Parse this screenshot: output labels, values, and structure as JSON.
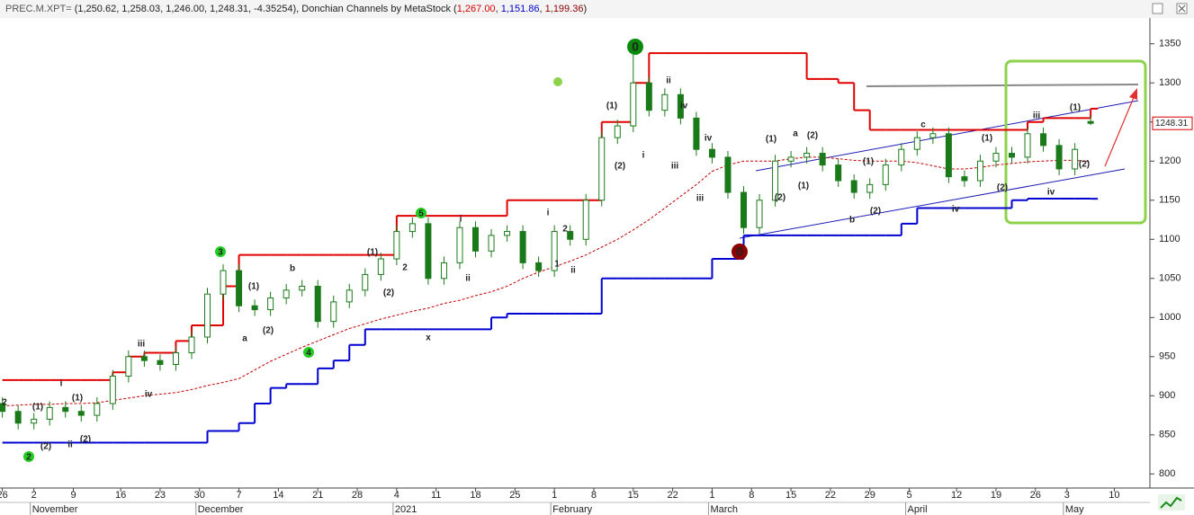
{
  "header": {
    "parts": [
      {
        "text": "PREC.M.XPT=",
        "color": "#555555"
      },
      {
        "text": " (1,250.62, 1,258.03, 1,246.00, 1,248.31, -4.35254), Donchian Channels by MetaStock (",
        "color": "#222222"
      },
      {
        "text": "1,267.00",
        "color": "#d40000"
      },
      {
        "text": ", ",
        "color": "#222222"
      },
      {
        "text": "1,151.86",
        "color": "#0000c8"
      },
      {
        "text": ", ",
        "color": "#222222"
      },
      {
        "text": "1,199.36",
        "color": "#8b0000"
      },
      {
        "text": ")",
        "color": "#222222"
      }
    ]
  },
  "chart_data": {
    "type": "candlestick",
    "xlim": [
      -0.3,
      145.4
    ],
    "ylim": [
      782,
      1383
    ],
    "yticks": [
      800,
      850,
      900,
      950,
      1000,
      1050,
      1100,
      1150,
      1200,
      1250,
      1300,
      1350
    ],
    "xticks": [
      {
        "value": 0,
        "label": "26"
      },
      {
        "value": 4,
        "label": "2"
      },
      {
        "value": 9,
        "label": "9"
      },
      {
        "value": 15,
        "label": "16"
      },
      {
        "value": 20,
        "label": "23"
      },
      {
        "value": 25,
        "label": "30"
      },
      {
        "value": 30,
        "label": "7"
      },
      {
        "value": 35,
        "label": "14"
      },
      {
        "value": 40,
        "label": "21"
      },
      {
        "value": 45,
        "label": "28"
      },
      {
        "value": 50,
        "label": "4"
      },
      {
        "value": 55,
        "label": "11"
      },
      {
        "value": 60,
        "label": "18"
      },
      {
        "value": 65,
        "label": "25"
      },
      {
        "value": 70,
        "label": "1"
      },
      {
        "value": 75,
        "label": "8"
      },
      {
        "value": 80,
        "label": "15"
      },
      {
        "value": 85,
        "label": "22"
      },
      {
        "value": 90,
        "label": "1"
      },
      {
        "value": 95,
        "label": "8"
      },
      {
        "value": 100,
        "label": "15"
      },
      {
        "value": 105,
        "label": "22"
      },
      {
        "value": 110,
        "label": "29"
      },
      {
        "value": 115,
        "label": "5"
      },
      {
        "value": 121,
        "label": "12"
      },
      {
        "value": 126,
        "label": "19"
      },
      {
        "value": 131,
        "label": "26"
      },
      {
        "value": 135,
        "label": "3"
      },
      {
        "value": 141,
        "label": "10"
      }
    ],
    "month_ticks": [
      {
        "value": 4,
        "label": "November"
      },
      {
        "value": 25,
        "label": "December"
      },
      {
        "value": 50,
        "label": "2021"
      },
      {
        "value": 70,
        "label": "February"
      },
      {
        "value": 90,
        "label": "March"
      },
      {
        "value": 115,
        "label": "April"
      },
      {
        "value": 135,
        "label": "May"
      }
    ],
    "last_label": "1248.31",
    "last_value": 1248.31,
    "up_color": "#ffffff",
    "down_color": "#1a7a1a",
    "wick_color": "#1a7a1a",
    "x": [
      0,
      2,
      4,
      6,
      8,
      10,
      12,
      14,
      16,
      18,
      20,
      22,
      24,
      26,
      28,
      30,
      32,
      34,
      36,
      38,
      40,
      42,
      44,
      46,
      48,
      50,
      52,
      54,
      56,
      58,
      60,
      62,
      64,
      66,
      68,
      70,
      72,
      74,
      76,
      78,
      80,
      82,
      84,
      86,
      88,
      90,
      92,
      94,
      96,
      98,
      100,
      102,
      104,
      106,
      108,
      110,
      112,
      114,
      116,
      118,
      120,
      122,
      124,
      126,
      128,
      130,
      132,
      134,
      136,
      138
    ],
    "open": [
      890,
      880,
      865,
      870,
      885,
      880,
      875,
      890,
      925,
      950,
      945,
      940,
      955,
      975,
      1030,
      1060,
      1015,
      1010,
      1025,
      1035,
      1040,
      995,
      1020,
      1035,
      1055,
      1075,
      1110,
      1120,
      1050,
      1070,
      1115,
      1085,
      1105,
      1110,
      1070,
      1060,
      1110,
      1100,
      1150,
      1230,
      1245,
      1300,
      1265,
      1285,
      1255,
      1215,
      1205,
      1160,
      1115,
      1150,
      1200,
      1205,
      1210,
      1195,
      1175,
      1160,
      1170,
      1195,
      1215,
      1230,
      1235,
      1180,
      1175,
      1200,
      1210,
      1205,
      1235,
      1220,
      1190,
      1250.62
    ],
    "high": [
      898,
      888,
      878,
      893,
      893,
      888,
      898,
      933,
      958,
      958,
      953,
      963,
      983,
      1038,
      1068,
      1068,
      1023,
      1033,
      1043,
      1048,
      1048,
      1028,
      1043,
      1063,
      1083,
      1118,
      1128,
      1128,
      1078,
      1123,
      1123,
      1113,
      1118,
      1118,
      1078,
      1118,
      1118,
      1158,
      1238,
      1253,
      1336,
      1308,
      1293,
      1293,
      1263,
      1223,
      1213,
      1168,
      1158,
      1208,
      1213,
      1218,
      1218,
      1203,
      1183,
      1178,
      1203,
      1223,
      1238,
      1243,
      1243,
      1188,
      1208,
      1218,
      1218,
      1243,
      1243,
      1228,
      1223,
      1258.03
    ],
    "low": [
      872,
      857,
      857,
      862,
      872,
      867,
      867,
      882,
      917,
      937,
      932,
      932,
      947,
      967,
      1022,
      1007,
      1002,
      1002,
      1017,
      1027,
      987,
      987,
      1012,
      1027,
      1047,
      1067,
      1102,
      1042,
      1042,
      1062,
      1077,
      1077,
      1097,
      1062,
      1052,
      1052,
      1092,
      1092,
      1142,
      1222,
      1237,
      1257,
      1257,
      1247,
      1207,
      1197,
      1152,
      1107,
      1107,
      1142,
      1192,
      1197,
      1187,
      1167,
      1152,
      1152,
      1162,
      1187,
      1207,
      1222,
      1172,
      1167,
      1167,
      1192,
      1197,
      1197,
      1212,
      1182,
      1182,
      1246
    ],
    "close": [
      880,
      865,
      870,
      885,
      880,
      875,
      890,
      925,
      950,
      945,
      940,
      955,
      975,
      1030,
      1060,
      1015,
      1010,
      1025,
      1035,
      1040,
      995,
      1020,
      1035,
      1055,
      1075,
      1110,
      1120,
      1050,
      1070,
      1115,
      1085,
      1105,
      1110,
      1070,
      1060,
      1110,
      1100,
      1150,
      1230,
      1245,
      1300,
      1265,
      1285,
      1255,
      1215,
      1205,
      1160,
      1115,
      1150,
      1200,
      1205,
      1210,
      1195,
      1175,
      1160,
      1170,
      1195,
      1215,
      1230,
      1235,
      1180,
      1175,
      1200,
      1210,
      1205,
      1235,
      1220,
      1190,
      1215,
      1248.31
    ],
    "channels": [
      {
        "color": "#e00000",
        "style": "step",
        "values": [
          920,
          920,
          920,
          920,
          920,
          920,
          920,
          930,
          950,
          955,
          955,
          970,
          990,
          990,
          1040,
          1080,
          1080,
          1080,
          1080,
          1080,
          1080,
          1080,
          1080,
          1080,
          1080,
          1130,
          1130,
          1130,
          1130,
          1130,
          1130,
          1130,
          1150,
          1150,
          1150,
          1150,
          1150,
          1150,
          1250,
          1250,
          1300,
          1338,
          1338,
          1338,
          1338,
          1338,
          1338,
          1338,
          1338,
          1338,
          1338,
          1305,
          1305,
          1300,
          1265,
          1240,
          1240,
          1240,
          1240,
          1240,
          1240,
          1240,
          1240,
          1240,
          1240,
          1250,
          1255,
          1255,
          1255,
          1267
        ]
      },
      {
        "color": "#0000d0",
        "style": "step",
        "values": [
          840,
          840,
          840,
          840,
          840,
          840,
          840,
          840,
          840,
          840,
          840,
          840,
          840,
          855,
          855,
          865,
          890,
          910,
          915,
          915,
          935,
          945,
          965,
          985,
          985,
          985,
          985,
          985,
          985,
          985,
          985,
          1000,
          1005,
          1005,
          1005,
          1005,
          1005,
          1005,
          1050,
          1050,
          1050,
          1050,
          1050,
          1050,
          1050,
          1075,
          1075,
          1105,
          1105,
          1105,
          1105,
          1105,
          1105,
          1105,
          1105,
          1105,
          1105,
          1120,
          1140,
          1140,
          1140,
          1140,
          1140,
          1140,
          1150,
          1152,
          1152,
          1152,
          1152,
          1151.86
        ]
      },
      {
        "color": "#c00000",
        "style": "dashed",
        "values": [
          887,
          888,
          889,
          889,
          890,
          890,
          891,
          894,
          897,
          900,
          902,
          904,
          908,
          913,
          917,
          922,
          933,
          944,
          953,
          962,
          970,
          978,
          986,
          992,
          998,
          1003,
          1008,
          1012,
          1018,
          1022,
          1028,
          1033,
          1040,
          1050,
          1058,
          1065,
          1072,
          1080,
          1090,
          1100,
          1112,
          1125,
          1140,
          1155,
          1170,
          1187,
          1195,
          1200,
          1200,
          1200,
          1203,
          1205,
          1205,
          1203,
          1201,
          1200,
          1200,
          1200,
          1198,
          1194,
          1190,
          1190,
          1192,
          1195,
          1197,
          1199,
          1200,
          1201,
          1201,
          1199.36
        ]
      }
    ],
    "annotations": [
      {
        "text": "0",
        "color": "#0a8a0a",
        "circled": true
      },
      {
        "text": "0",
        "color": "#8b0000",
        "circled": true
      },
      {
        "text": "3",
        "color": "#22cc22",
        "circled": true
      },
      {
        "text": "4",
        "color": "#22cc22",
        "circled": true
      },
      {
        "text": "5",
        "color": "#22cc22",
        "circled": true
      },
      {
        "text": "2",
        "color": "#22cc22",
        "circled": true
      },
      {
        "text": "(1)",
        "color": "#1f8a1f"
      },
      {
        "text": "i",
        "color": "#1f8a1f"
      },
      {
        "text": "(1)",
        "color": "#1f8a1f"
      },
      {
        "text": "(2)",
        "color": "#1f8a1f"
      },
      {
        "text": "ii",
        "color": "#1f8a1f"
      },
      {
        "text": "(2)",
        "color": "#1f8a1f"
      },
      {
        "text": "iii",
        "color": "#1f8a1f"
      },
      {
        "text": "iv",
        "color": "#1f8a1f"
      },
      {
        "text": "(1)",
        "color": "#1f8a1f"
      },
      {
        "text": "(2)",
        "color": "#1f8a1f"
      },
      {
        "text": "(1)",
        "color": "#1f8a1f"
      },
      {
        "text": "2",
        "color": "#1f8a1f"
      },
      {
        "text": "(2)",
        "color": "#1f8a1f"
      },
      {
        "text": "i",
        "color": "#1f8a1f"
      },
      {
        "text": "ii",
        "color": "#1f8a1f"
      },
      {
        "text": "i",
        "color": "#1f8a1f"
      },
      {
        "text": "2",
        "color": "#1f8a1f"
      },
      {
        "text": "ii",
        "color": "#1f8a1f"
      },
      {
        "text": "(1)",
        "color": "#1f8a1f"
      },
      {
        "text": "(2)",
        "color": "#1f8a1f"
      },
      {
        "text": "(1)",
        "color": "#1f8a1f"
      },
      {
        "text": "a",
        "color": "#1f8a1f"
      },
      {
        "text": "(2)",
        "color": "#1f8a1f"
      },
      {
        "text": "(1)",
        "color": "#1f8a1f"
      },
      {
        "text": "(2)",
        "color": "#1f8a1f"
      },
      {
        "text": "b",
        "color": "#1f8a1f"
      },
      {
        "text": "c",
        "color": "#1f8a1f"
      },
      {
        "text": "(1)",
        "color": "#1f8a1f"
      },
      {
        "text": "(2)",
        "color": "#1f8a1f"
      },
      {
        "text": "iii",
        "color": "#1f8a1f"
      },
      {
        "text": "(1)",
        "color": "#1f8a1f"
      },
      {
        "text": "(2)",
        "color": "#1f8a1f"
      },
      {
        "text": "iv",
        "color": "#1f8a1f"
      },
      {
        "text": "x",
        "color": "#22cc22"
      },
      {
        "text": "b",
        "color": "#8b0000"
      },
      {
        "text": "a",
        "color": "#8b0000"
      },
      {
        "text": "i",
        "color": "#8b0000"
      },
      {
        "text": "ii",
        "color": "#8b0000"
      },
      {
        "text": "iv",
        "color": "#8b0000"
      },
      {
        "text": "iii",
        "color": "#8b0000"
      },
      {
        "text": "(1)",
        "color": "#8b0000"
      },
      {
        "text": "(2)",
        "color": "#8b0000"
      },
      {
        "text": "1",
        "color": "#8b0000"
      },
      {
        "text": "2",
        "color": "#8b0000"
      },
      {
        "text": "iv",
        "color": "#aaaaaa"
      },
      {
        "text": "iii",
        "color": "#aaaaaa"
      },
      {
        "text": "iv",
        "color": "#aaaaaa"
      }
    ]
  }
}
